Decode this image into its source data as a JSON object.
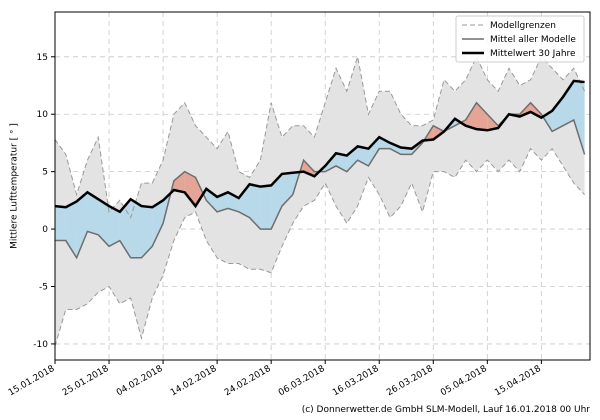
{
  "chart_data": {
    "type": "band-line",
    "y_label": "Mittlere Lufttemperatur [ ° ]",
    "footer": "(c) Donnerwetter.de GmbH SLM-Modell, Lauf 16.01.2018 00 Uhr",
    "x": [
      "2018-01-15",
      "2018-01-17",
      "2018-01-19",
      "2018-01-21",
      "2018-01-23",
      "2018-01-25",
      "2018-01-27",
      "2018-01-29",
      "2018-01-31",
      "2018-02-02",
      "2018-02-04",
      "2018-02-06",
      "2018-02-08",
      "2018-02-10",
      "2018-02-12",
      "2018-02-14",
      "2018-02-16",
      "2018-02-18",
      "2018-02-20",
      "2018-02-22",
      "2018-02-24",
      "2018-02-26",
      "2018-02-28",
      "2018-03-02",
      "2018-03-04",
      "2018-03-06",
      "2018-03-08",
      "2018-03-10",
      "2018-03-12",
      "2018-03-14",
      "2018-03-16",
      "2018-03-18",
      "2018-03-20",
      "2018-03-22",
      "2018-03-24",
      "2018-03-26",
      "2018-03-28",
      "2018-03-30",
      "2018-04-01",
      "2018-04-03",
      "2018-04-05",
      "2018-04-07",
      "2018-04-09",
      "2018-04-11",
      "2018-04-13",
      "2018-04-15",
      "2018-04-17",
      "2018-04-19",
      "2018-04-21",
      "2018-04-23"
    ],
    "series": [
      {
        "name": "Modellgrenzen",
        "color": "#999999",
        "band_color": "#e3e3e3",
        "upper": [
          7.8,
          6.5,
          3,
          6,
          8,
          1.5,
          2.5,
          1,
          4,
          4,
          6,
          10,
          11,
          9,
          8,
          7,
          8.5,
          5,
          4.5,
          6,
          11,
          8,
          9,
          9,
          8,
          11,
          14,
          12,
          15,
          10,
          12,
          12,
          10,
          9,
          9,
          9.5,
          13,
          12,
          13,
          15,
          13,
          12,
          14,
          12.5,
          13,
          15,
          14,
          13,
          14,
          12
        ],
        "lower": [
          -10.2,
          -7,
          -7,
          -6.5,
          -5.5,
          -5,
          -6.5,
          -6,
          -9.5,
          -6,
          -4,
          -1,
          1,
          1.5,
          -1,
          -2.5,
          -3,
          -3,
          -3.5,
          -3.5,
          -3.8,
          -1.5,
          0.5,
          2,
          2.5,
          4,
          2,
          0.5,
          2,
          4.5,
          3,
          1,
          2,
          4,
          1.5,
          5,
          5,
          4.5,
          6,
          5,
          6,
          5,
          6,
          5,
          7,
          6,
          7,
          5.5,
          4,
          3
        ]
      },
      {
        "name": "Mittel aller Modelle",
        "color": "#6e6e6e",
        "values": [
          -1,
          -1,
          -2.5,
          -0.2,
          -0.5,
          -1.5,
          -1,
          -2.5,
          -2.5,
          -1.5,
          0.5,
          4.2,
          5,
          4.5,
          2.5,
          1.5,
          1.8,
          1.5,
          1,
          0,
          0,
          2,
          3,
          6,
          5,
          5,
          5.5,
          5,
          6,
          5.5,
          7,
          7,
          6.5,
          6.5,
          7.5,
          9,
          8.5,
          9,
          9.5,
          11,
          10,
          9,
          10,
          10,
          11,
          10,
          8.5,
          9,
          9.5,
          6.5
        ]
      },
      {
        "name": "Mittelwert 30 Jahre",
        "color": "#000000",
        "values": [
          2,
          1.9,
          2.4,
          3.2,
          2.6,
          2,
          1.5,
          2.6,
          2,
          1.9,
          2.5,
          3.4,
          3.2,
          2,
          3.5,
          2.8,
          3.2,
          2.7,
          3.9,
          3.7,
          3.8,
          4.8,
          4.9,
          5,
          4.6,
          5.5,
          6.6,
          6.4,
          7.2,
          7,
          8,
          7.5,
          7.1,
          7,
          7.7,
          7.8,
          8.5,
          9.6,
          9,
          8.7,
          8.6,
          8.8,
          10,
          9.8,
          10.2,
          9.7,
          10.3,
          11.5,
          12.9,
          12.8
        ]
      }
    ],
    "fill_below": "#b7d9ea",
    "fill_above": "#e5a596",
    "xlim": [
      "2018-01-15",
      "2018-04-24"
    ],
    "xticks": [
      {
        "value": "2018-01-15",
        "label": "15.01.2018"
      },
      {
        "value": "2018-01-25",
        "label": "25.01.2018"
      },
      {
        "value": "2018-02-04",
        "label": "04.02.2018"
      },
      {
        "value": "2018-02-14",
        "label": "14.02.2018"
      },
      {
        "value": "2018-02-24",
        "label": "24.02.2018"
      },
      {
        "value": "2018-03-06",
        "label": "06.03.2018"
      },
      {
        "value": "2018-03-16",
        "label": "16.03.2018"
      },
      {
        "value": "2018-03-26",
        "label": "26.03.2018"
      },
      {
        "value": "2018-04-05",
        "label": "05.04.2018"
      },
      {
        "value": "2018-04-15",
        "label": "15.04.2018"
      }
    ],
    "ylim": [
      -11.4,
      18.9
    ],
    "yticks": [
      -10,
      -5,
      0,
      5,
      10,
      15
    ],
    "grid": true,
    "legend": "upper-right"
  }
}
